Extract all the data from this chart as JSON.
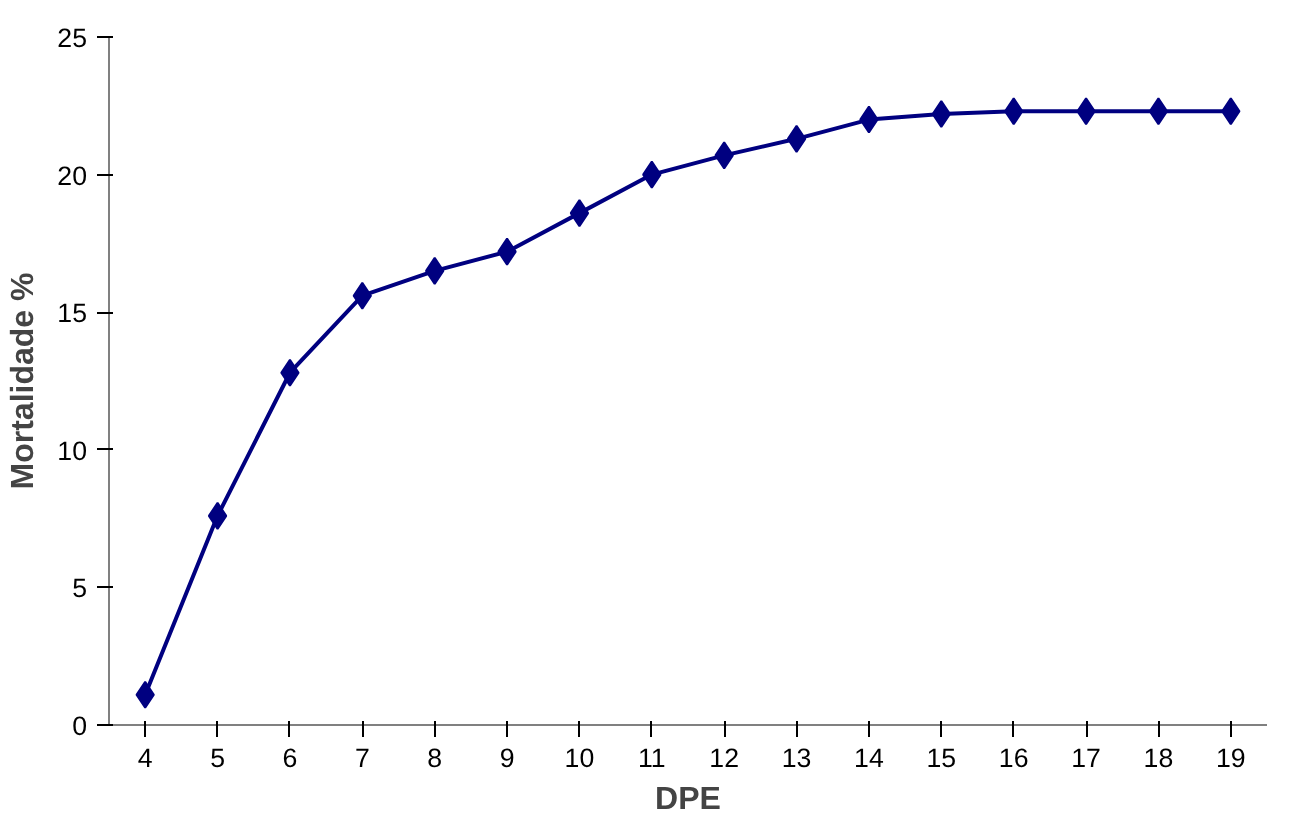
{
  "chart_data": {
    "type": "line",
    "xlabel": "DPE",
    "ylabel": "Mortalidade %",
    "categories": [
      "4",
      "5",
      "6",
      "7",
      "8",
      "9",
      "10",
      "11",
      "12",
      "13",
      "14",
      "15",
      "16",
      "17",
      "18",
      "19"
    ],
    "series": [
      {
        "color": "#000080",
        "values": [
          1.1,
          7.6,
          12.8,
          15.6,
          16.5,
          17.2,
          18.6,
          20.0,
          20.7,
          21.3,
          22.0,
          22.2,
          22.3,
          22.3,
          22.3,
          22.3
        ]
      }
    ],
    "ylim": [
      0,
      25
    ],
    "yticks": [
      0,
      5,
      10,
      15,
      20,
      25
    ],
    "marker": "diamond",
    "line_style": "solid",
    "grid": false
  }
}
